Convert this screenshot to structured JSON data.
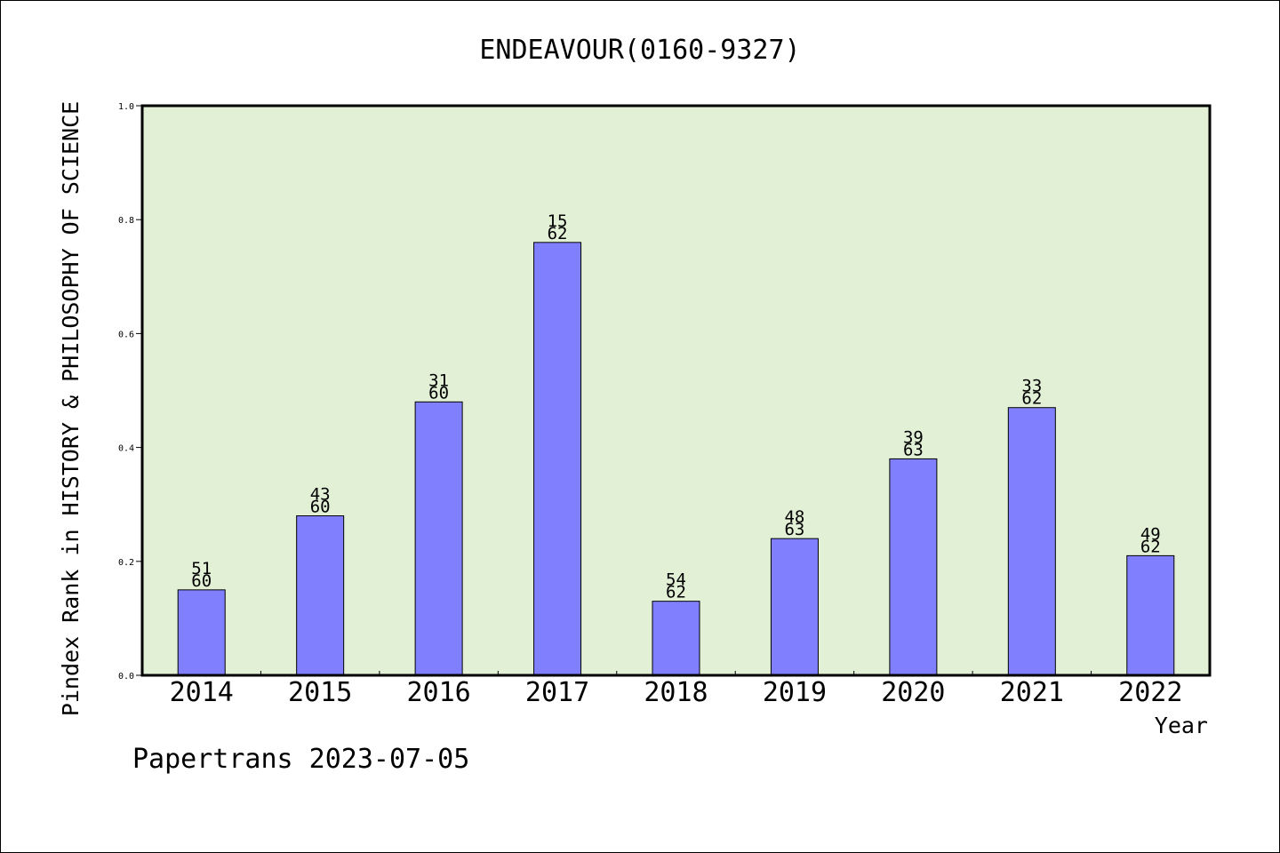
{
  "chart_data": {
    "type": "bar",
    "title": "ENDEAVOUR(0160-9327)",
    "xlabel": "Year",
    "ylabel": "Pindex Rank in HISTORY & PHILOSOPHY OF SCIENCE",
    "ylim": [
      0,
      1
    ],
    "yticks": [
      "0.0",
      "0.2",
      "0.4",
      "0.6",
      "0.8",
      "1.0"
    ],
    "categories": [
      "2014",
      "2015",
      "2016",
      "2017",
      "2018",
      "2019",
      "2020",
      "2021",
      "2022"
    ],
    "values": [
      0.15,
      0.28,
      0.48,
      0.76,
      0.13,
      0.24,
      0.38,
      0.47,
      0.21
    ],
    "labels": [
      {
        "rank": "51",
        "total": "60"
      },
      {
        "rank": "43",
        "total": "60"
      },
      {
        "rank": "31",
        "total": "60"
      },
      {
        "rank": "15",
        "total": "62"
      },
      {
        "rank": "54",
        "total": "62"
      },
      {
        "rank": "48",
        "total": "63"
      },
      {
        "rank": "39",
        "total": "63"
      },
      {
        "rank": "33",
        "total": "62"
      },
      {
        "rank": "49",
        "total": "62"
      }
    ],
    "grid": false,
    "colors": {
      "bar": "#8080ff",
      "plot_bg": "#e2f0d6",
      "axis": "#000000"
    }
  },
  "footer": {
    "credit": "Papertrans 2023-07-05"
  }
}
